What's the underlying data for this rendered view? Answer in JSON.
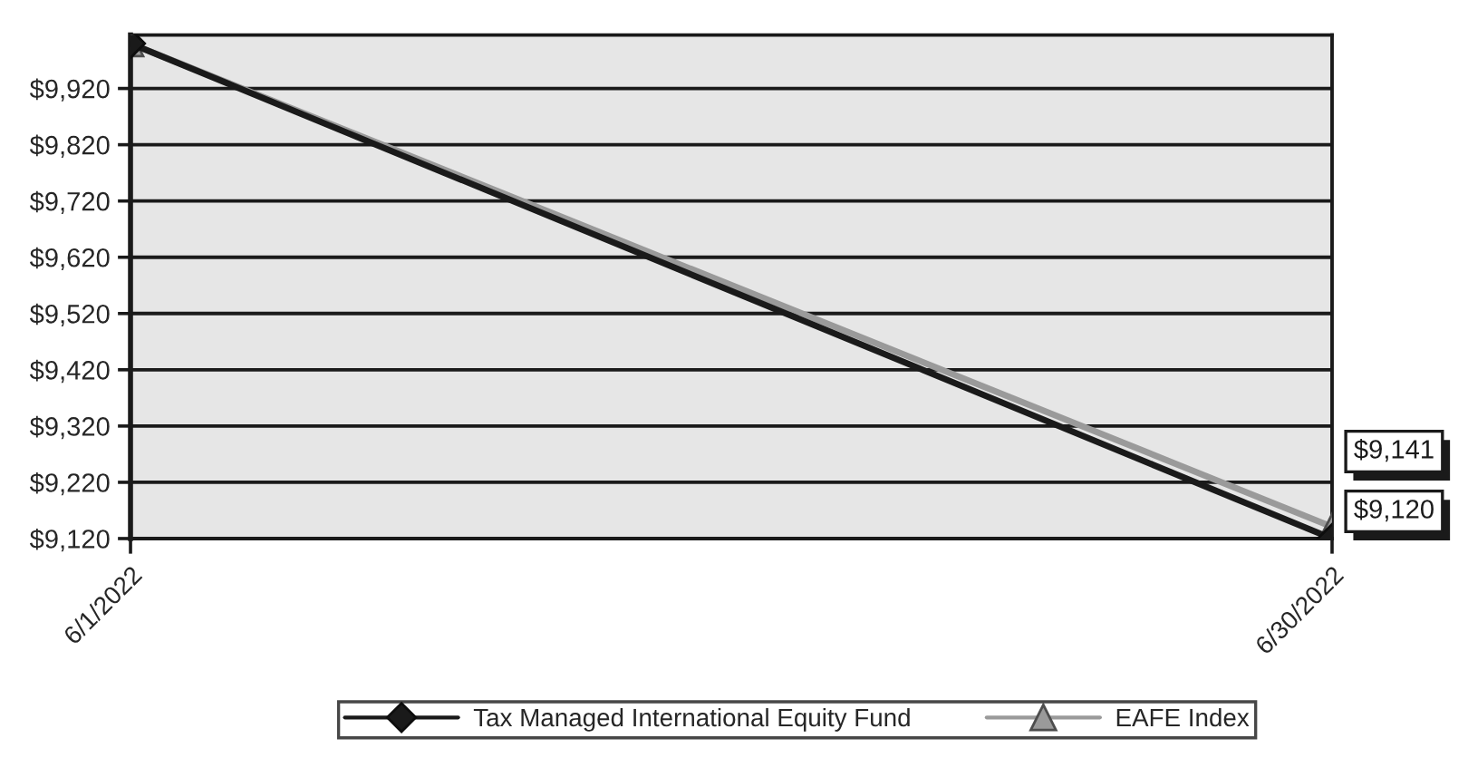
{
  "chart_data": {
    "type": "line",
    "x": [
      "2022-06-01",
      "2022-06-30"
    ],
    "xlim": [
      "2022-06-01",
      "2022-06-30"
    ],
    "xticks": [
      {
        "value": "2022-06-01",
        "label": "6/1/2022"
      },
      {
        "value": "2022-06-30",
        "label": "6/30/2022"
      }
    ],
    "ylim": [
      9120,
      10015
    ],
    "yticks": [
      {
        "value": 9120,
        "label": "$9,120"
      },
      {
        "value": 9220,
        "label": "$9,220"
      },
      {
        "value": 9320,
        "label": "$9,320"
      },
      {
        "value": 9420,
        "label": "$9,420"
      },
      {
        "value": 9520,
        "label": "$9,520"
      },
      {
        "value": 9620,
        "label": "$9,620"
      },
      {
        "value": 9720,
        "label": "$9,720"
      },
      {
        "value": 9820,
        "label": "$9,820"
      },
      {
        "value": 9920,
        "label": "$9,920"
      }
    ],
    "grid": "y",
    "legend": "bottom",
    "series": [
      {
        "name": "Tax Managed International Equity Fund",
        "color": "#1a1a1a",
        "marker": "diamond",
        "values": [
          10000,
          9120
        ],
        "value_labels": [
          null,
          "$9,120"
        ]
      },
      {
        "name": "EAFE Index",
        "color": "#9a9a9a",
        "marker": "triangle",
        "values": [
          10000,
          9141
        ],
        "value_labels": [
          null,
          "$9,141"
        ]
      }
    ]
  }
}
